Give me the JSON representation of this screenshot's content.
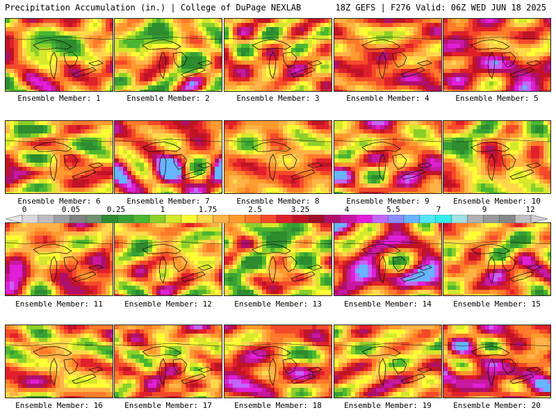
{
  "header": {
    "left": "Precipitation Accumulation (in.) | College of DuPage NEXLAB",
    "right": "18Z GEFS | F276 Valid: 06Z WED JUN 18 2025"
  },
  "colors": {
    "scale": [
      "#d8d8d8",
      "#bdbdbd",
      "#a0a0a0",
      "#828282",
      "#6f8f6f",
      "#2e8b2e",
      "#37a035",
      "#4cb630",
      "#8ccf2a",
      "#d6e82b",
      "#ffff33",
      "#ffd84a",
      "#ffb347",
      "#ff9a2e",
      "#ff7a2a",
      "#f44a2a",
      "#e0202a",
      "#c01426",
      "#a0102a",
      "#b0106a",
      "#c818a0",
      "#e21ed8",
      "#c266f5",
      "#8a8cff",
      "#67b4ff",
      "#52e5f5",
      "#30f0e8",
      "#9fe0e0",
      "#b0b0b0",
      "#9a9a9a",
      "#888888",
      "#bfbfbf"
    ]
  },
  "colorbar": {
    "labels": [
      {
        "text": "0",
        "idx": 0
      },
      {
        "text": "0.05",
        "idx": 3
      },
      {
        "text": "0.25",
        "idx": 6
      },
      {
        "text": "1",
        "idx": 9
      },
      {
        "text": "1.75",
        "idx": 12
      },
      {
        "text": "2.5",
        "idx": 15
      },
      {
        "text": "3.25",
        "idx": 18
      },
      {
        "text": "4",
        "idx": 21
      },
      {
        "text": "5.5",
        "idx": 24
      },
      {
        "text": "7",
        "idx": 27
      },
      {
        "text": "9",
        "idx": 30
      },
      {
        "text": "12",
        "idx": 33
      }
    ]
  },
  "panels": [
    {
      "caption": "Ensemble Member: 1",
      "seed": 11,
      "bias": 0.55
    },
    {
      "caption": "Ensemble Member: 2",
      "seed": 23,
      "bias": 0.45
    },
    {
      "caption": "Ensemble Member: 3",
      "seed": 37,
      "bias": 0.6
    },
    {
      "caption": "Ensemble Member: 4",
      "seed": 41,
      "bias": 0.7
    },
    {
      "caption": "Ensemble Member: 5",
      "seed": 53,
      "bias": 0.8
    },
    {
      "caption": "Ensemble Member: 6",
      "seed": 61,
      "bias": 0.55
    },
    {
      "caption": "Ensemble Member: 7",
      "seed": 73,
      "bias": 0.78
    },
    {
      "caption": "Ensemble Member: 8",
      "seed": 89,
      "bias": 0.6
    },
    {
      "caption": "Ensemble Member: 9",
      "seed": 97,
      "bias": 0.68
    },
    {
      "caption": "Ensemble Member: 10",
      "seed": 101,
      "bias": 0.5
    },
    {
      "caption": "Ensemble Member: 11",
      "seed": 113,
      "bias": 0.65
    },
    {
      "caption": "Ensemble Member: 12",
      "seed": 127,
      "bias": 0.55
    },
    {
      "caption": "Ensemble Member: 13",
      "seed": 131,
      "bias": 0.4
    },
    {
      "caption": "Ensemble Member: 14",
      "seed": 149,
      "bias": 0.82
    },
    {
      "caption": "Ensemble Member: 15",
      "seed": 151,
      "bias": 0.6
    },
    {
      "caption": "Ensemble Member: 16",
      "seed": 163,
      "bias": 0.55
    },
    {
      "caption": "Ensemble Member: 17",
      "seed": 173,
      "bias": 0.62
    },
    {
      "caption": "Ensemble Member: 18",
      "seed": 181,
      "bias": 0.72
    },
    {
      "caption": "Ensemble Member: 19",
      "seed": 191,
      "bias": 0.58
    },
    {
      "caption": "Ensemble Member: 20",
      "seed": 199,
      "bias": 0.8
    }
  ]
}
